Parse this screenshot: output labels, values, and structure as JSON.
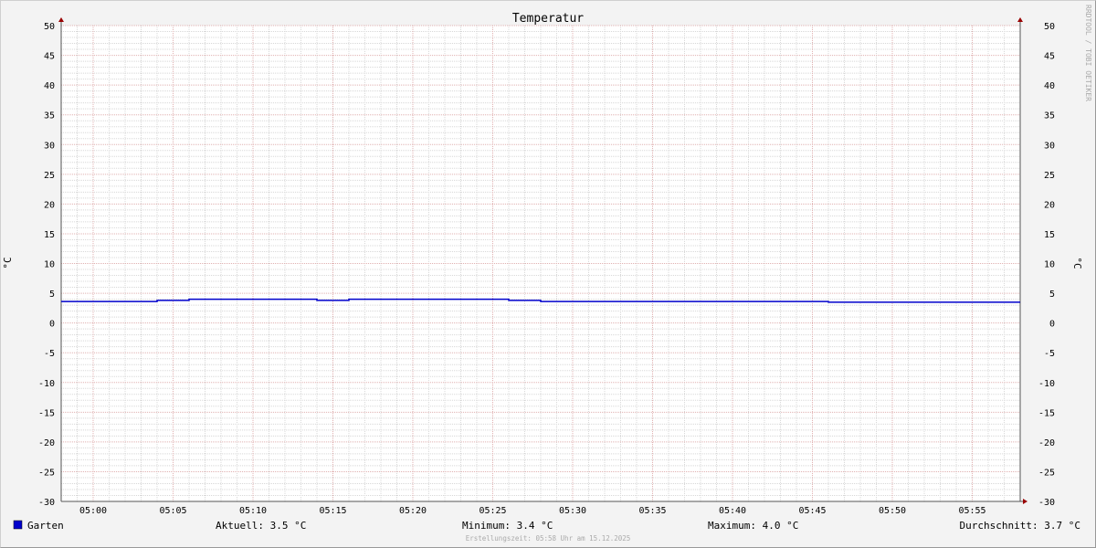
{
  "chart_data": {
    "type": "line",
    "title": "Temperatur",
    "ylabel": "°C",
    "ylabel_right": "°C",
    "ylim": [
      -30,
      50
    ],
    "yticks": [
      50,
      45,
      40,
      35,
      30,
      25,
      20,
      15,
      10,
      5,
      0,
      -5,
      -10,
      -15,
      -20,
      -25,
      -30
    ],
    "xlim": [
      "04:58",
      "05:58"
    ],
    "xticks": [
      "05:00",
      "05:05",
      "05:10",
      "05:15",
      "05:20",
      "05:25",
      "05:30",
      "05:35",
      "05:40",
      "05:45",
      "05:50",
      "05:55"
    ],
    "grid": true,
    "series": [
      {
        "name": "Garten",
        "color": "#0000cc",
        "step": true,
        "points": [
          [
            "04:58",
            3.6
          ],
          [
            "05:04",
            3.8
          ],
          [
            "05:06",
            4.0
          ],
          [
            "05:14",
            3.8
          ],
          [
            "05:16",
            4.0
          ],
          [
            "05:26",
            3.8
          ],
          [
            "05:28",
            3.6
          ],
          [
            "05:46",
            3.5
          ],
          [
            "05:58",
            3.5
          ]
        ]
      }
    ],
    "legend": {
      "placement": "bottom",
      "series_label": "Garten",
      "aktuell": "Aktuell: 3.5 °C",
      "minimum": "Minimum: 3.4 °C",
      "maximum": "Maximum: 4.0 °C",
      "durchschnitt": "Durchschnitt: 3.7 °C"
    },
    "footer": "Erstellungszeit: 05:58 Uhr am 15.12.2025",
    "watermark": "RRDTOOL / TOBI OETIKER"
  }
}
